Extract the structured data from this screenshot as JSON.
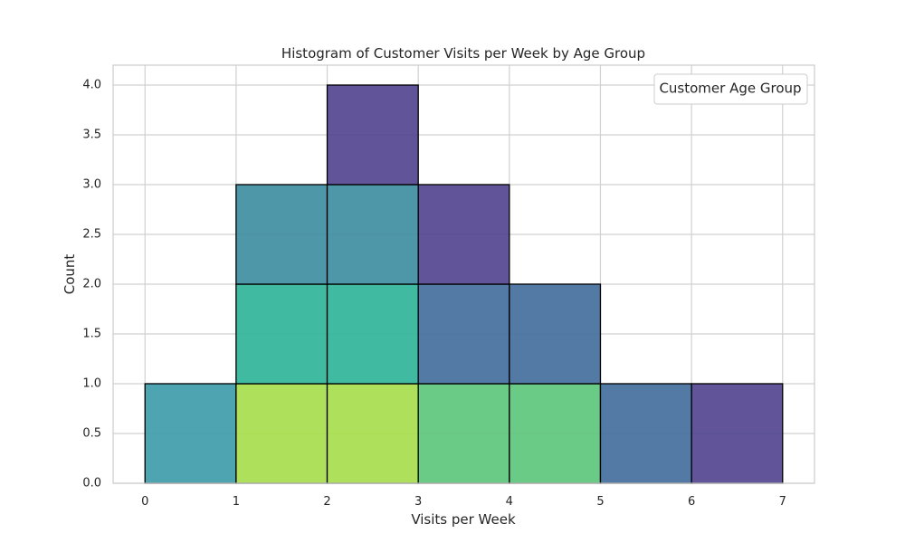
{
  "chart_data": {
    "type": "bar",
    "title": "Histogram of Customer Visits per Week by Age Group",
    "xlabel": "Visits per Week",
    "ylabel": "Count",
    "xlim": [
      -0.35,
      7.35
    ],
    "ylim": [
      0,
      4.2
    ],
    "xticks": [
      "0",
      "1",
      "2",
      "3",
      "4",
      "5",
      "6",
      "7"
    ],
    "yticks": [
      "0.0",
      "0.5",
      "1.0",
      "1.5",
      "2.0",
      "2.5",
      "3.0",
      "3.5",
      "4.0"
    ],
    "grid": true,
    "stacked": true,
    "legend": {
      "title": "Customer Age Group",
      "placement": "top-right",
      "entries": []
    },
    "bins": [
      {
        "x0": 0,
        "x1": 1,
        "segments": [
          {
            "value": 1,
            "color": "#3b9aa8"
          }
        ]
      },
      {
        "x0": 1,
        "x1": 2,
        "segments": [
          {
            "value": 1,
            "color": "#a6dd49"
          },
          {
            "value": 1,
            "color": "#2bb396"
          },
          {
            "value": 1,
            "color": "#3b8c9f"
          }
        ]
      },
      {
        "x0": 2,
        "x1": 3,
        "segments": [
          {
            "value": 1,
            "color": "#a6dd49"
          },
          {
            "value": 1,
            "color": "#2bb396"
          },
          {
            "value": 1,
            "color": "#3b8c9f"
          },
          {
            "value": 1,
            "color": "#50418e"
          }
        ]
      },
      {
        "x0": 3,
        "x1": 4,
        "segments": [
          {
            "value": 1,
            "color": "#5ac57a"
          },
          {
            "value": 1,
            "color": "#3f6b9a"
          },
          {
            "value": 1,
            "color": "#50418e"
          }
        ]
      },
      {
        "x0": 4,
        "x1": 5,
        "segments": [
          {
            "value": 1,
            "color": "#5ac57a"
          },
          {
            "value": 1,
            "color": "#3f6b9a"
          }
        ]
      },
      {
        "x0": 5,
        "x1": 6,
        "segments": [
          {
            "value": 1,
            "color": "#3f6b9a"
          }
        ]
      },
      {
        "x0": 6,
        "x1": 7,
        "segments": [
          {
            "value": 1,
            "color": "#50418e"
          }
        ]
      }
    ],
    "colors": {
      "grid": "#d0d0d0",
      "spine": "#cccccc",
      "bar_edge": "#000000",
      "text": "#262626"
    }
  }
}
